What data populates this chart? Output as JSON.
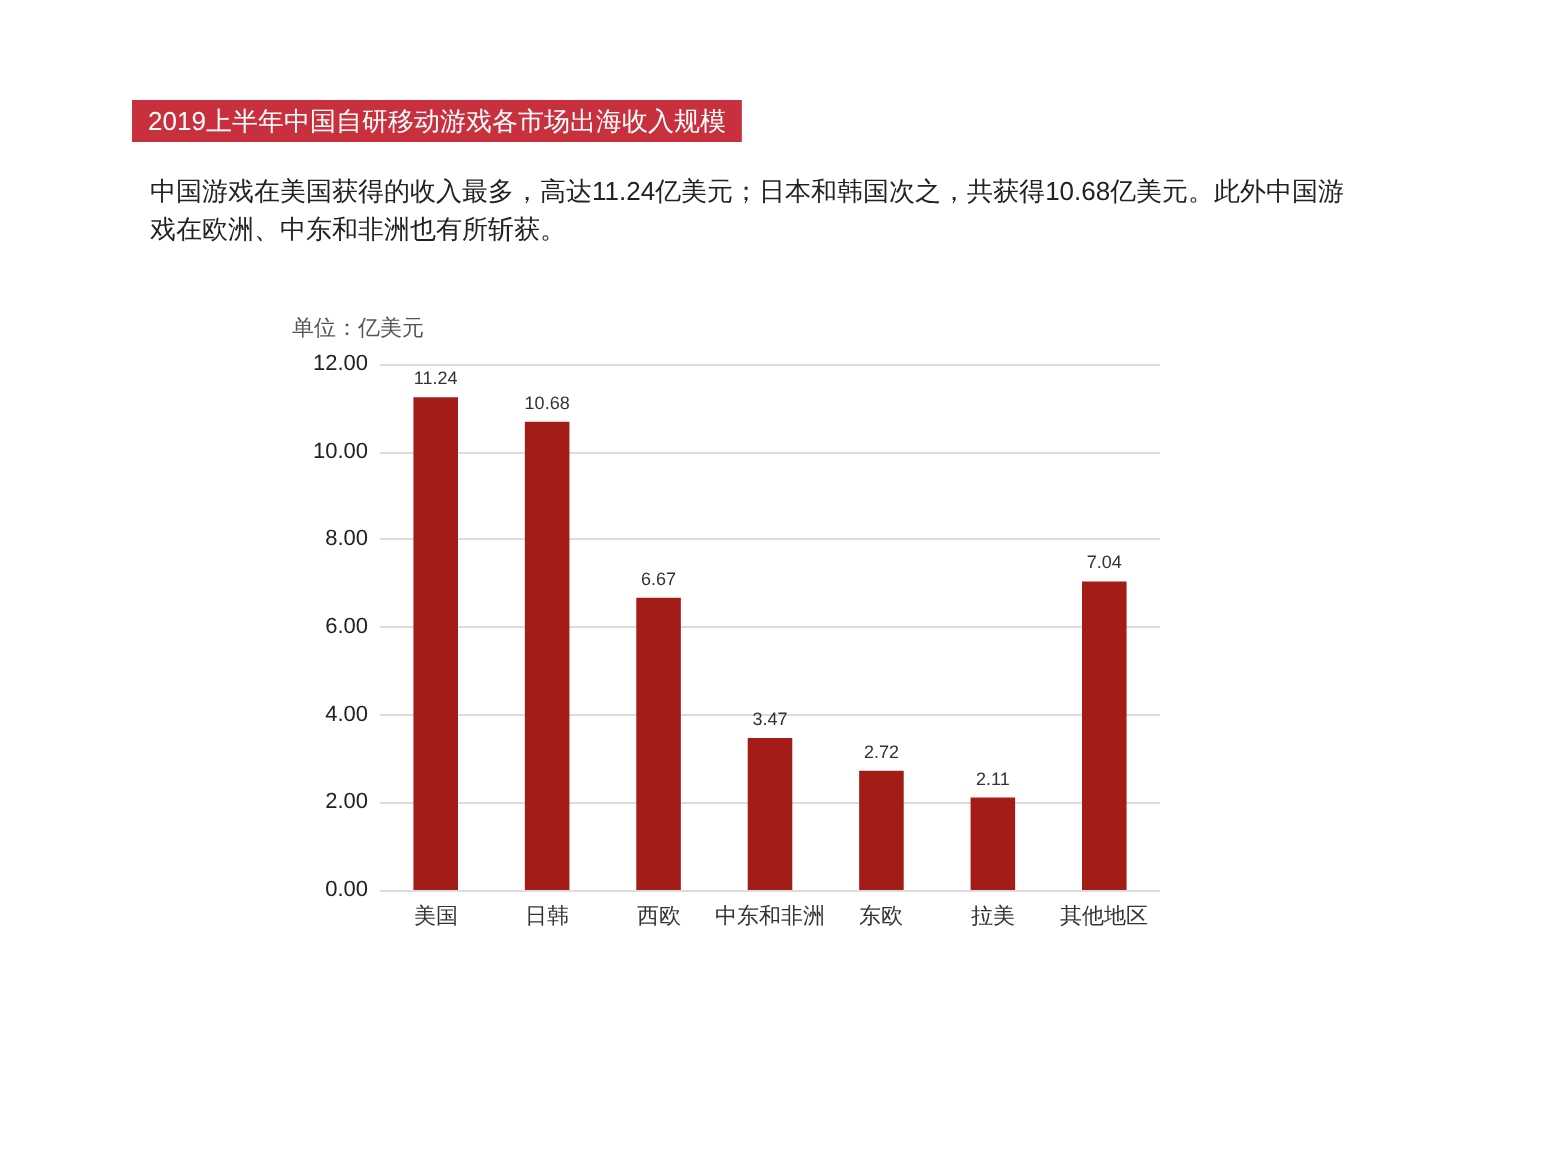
{
  "chart_data": {
    "type": "bar",
    "title": "2019上半年中国自研移动游戏各市场出海收入规模",
    "subtitle": "中国游戏在美国获得的收入最多，高达11.24亿美元；日本和韩国次之，共获得10.68亿美元。此外中国游戏在欧洲、中东和非洲也有所斩获。",
    "ylabel": "单位：亿美元",
    "categories": [
      "美国",
      "日韩",
      "西欧",
      "中东和非洲",
      "东欧",
      "拉美",
      "其他地区"
    ],
    "values": [
      11.24,
      10.68,
      6.67,
      3.47,
      2.72,
      2.11,
      7.04
    ],
    "color": "#a31c17",
    "ylim": [
      0,
      12
    ],
    "yticks": [
      {
        "value": 0,
        "label": "0.00"
      },
      {
        "value": 2,
        "label": "2.00"
      },
      {
        "value": 4,
        "label": "4.00"
      },
      {
        "value": 6,
        "label": "6.00"
      },
      {
        "value": 8,
        "label": "8.00"
      },
      {
        "value": 10,
        "label": "10.00"
      },
      {
        "value": 12,
        "label": "12.00"
      }
    ],
    "grid": "y",
    "data_labels": true
  }
}
